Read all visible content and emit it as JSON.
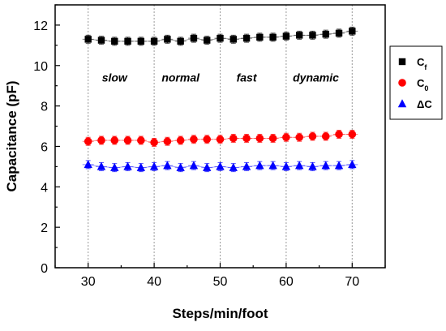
{
  "chart_data": {
    "type": "scatter",
    "xlabel": "Steps/min/foot",
    "ylabel": "Capacitance (pF)",
    "xlim": [
      25,
      75
    ],
    "ylim": [
      0,
      13
    ],
    "xticks": [
      30,
      40,
      50,
      60,
      70
    ],
    "yticks": [
      0,
      2,
      4,
      6,
      8,
      10,
      12
    ],
    "grid": false,
    "vlines": [
      30,
      40,
      50,
      60,
      70
    ],
    "legend_position": "right",
    "regions": [
      {
        "label": "slow",
        "x": 34,
        "y": 9.2
      },
      {
        "label": "normal",
        "x": 44,
        "y": 9.2
      },
      {
        "label": "fast",
        "x": 54,
        "y": 9.2
      },
      {
        "label": "dynamic",
        "x": 64.5,
        "y": 9.2
      }
    ],
    "x": [
      30,
      32,
      34,
      36,
      38,
      40,
      42,
      44,
      46,
      48,
      50,
      52,
      54,
      56,
      58,
      60,
      62,
      64,
      66,
      68,
      70
    ],
    "series": [
      {
        "name": "Cf",
        "name_main": "C",
        "name_sub": "f",
        "marker": "square",
        "color": "#000000",
        "values": [
          11.3,
          11.25,
          11.2,
          11.2,
          11.2,
          11.2,
          11.3,
          11.2,
          11.35,
          11.25,
          11.35,
          11.3,
          11.35,
          11.4,
          11.4,
          11.45,
          11.5,
          11.5,
          11.55,
          11.6,
          11.7
        ],
        "errors": [
          0.2,
          0.2,
          0.2,
          0.2,
          0.2,
          0.2,
          0.2,
          0.2,
          0.2,
          0.2,
          0.2,
          0.2,
          0.2,
          0.2,
          0.2,
          0.2,
          0.2,
          0.2,
          0.2,
          0.2,
          0.2
        ]
      },
      {
        "name": "Co",
        "name_main": "C",
        "name_sub": "0",
        "marker": "circle",
        "color": "#ff0000",
        "values": [
          6.25,
          6.3,
          6.3,
          6.3,
          6.3,
          6.2,
          6.25,
          6.3,
          6.35,
          6.35,
          6.35,
          6.4,
          6.4,
          6.4,
          6.4,
          6.45,
          6.45,
          6.5,
          6.5,
          6.6,
          6.6
        ],
        "errors": [
          0.2,
          0.2,
          0.2,
          0.2,
          0.2,
          0.2,
          0.2,
          0.2,
          0.2,
          0.2,
          0.2,
          0.2,
          0.2,
          0.2,
          0.2,
          0.2,
          0.2,
          0.2,
          0.2,
          0.2,
          0.2
        ]
      },
      {
        "name": "ΔC",
        "name_main": "ΔC",
        "name_sub": "",
        "marker": "triangle",
        "color": "#0000ff",
        "values": [
          5.1,
          5.0,
          4.95,
          5.0,
          4.95,
          5.0,
          5.05,
          4.95,
          5.05,
          4.95,
          5.0,
          4.95,
          5.0,
          5.05,
          5.05,
          5.0,
          5.05,
          5.0,
          5.05,
          5.05,
          5.1
        ],
        "errors": [
          0.2,
          0.2,
          0.2,
          0.2,
          0.2,
          0.2,
          0.2,
          0.2,
          0.2,
          0.2,
          0.2,
          0.2,
          0.2,
          0.2,
          0.2,
          0.2,
          0.2,
          0.2,
          0.2,
          0.2,
          0.2
        ]
      }
    ]
  }
}
